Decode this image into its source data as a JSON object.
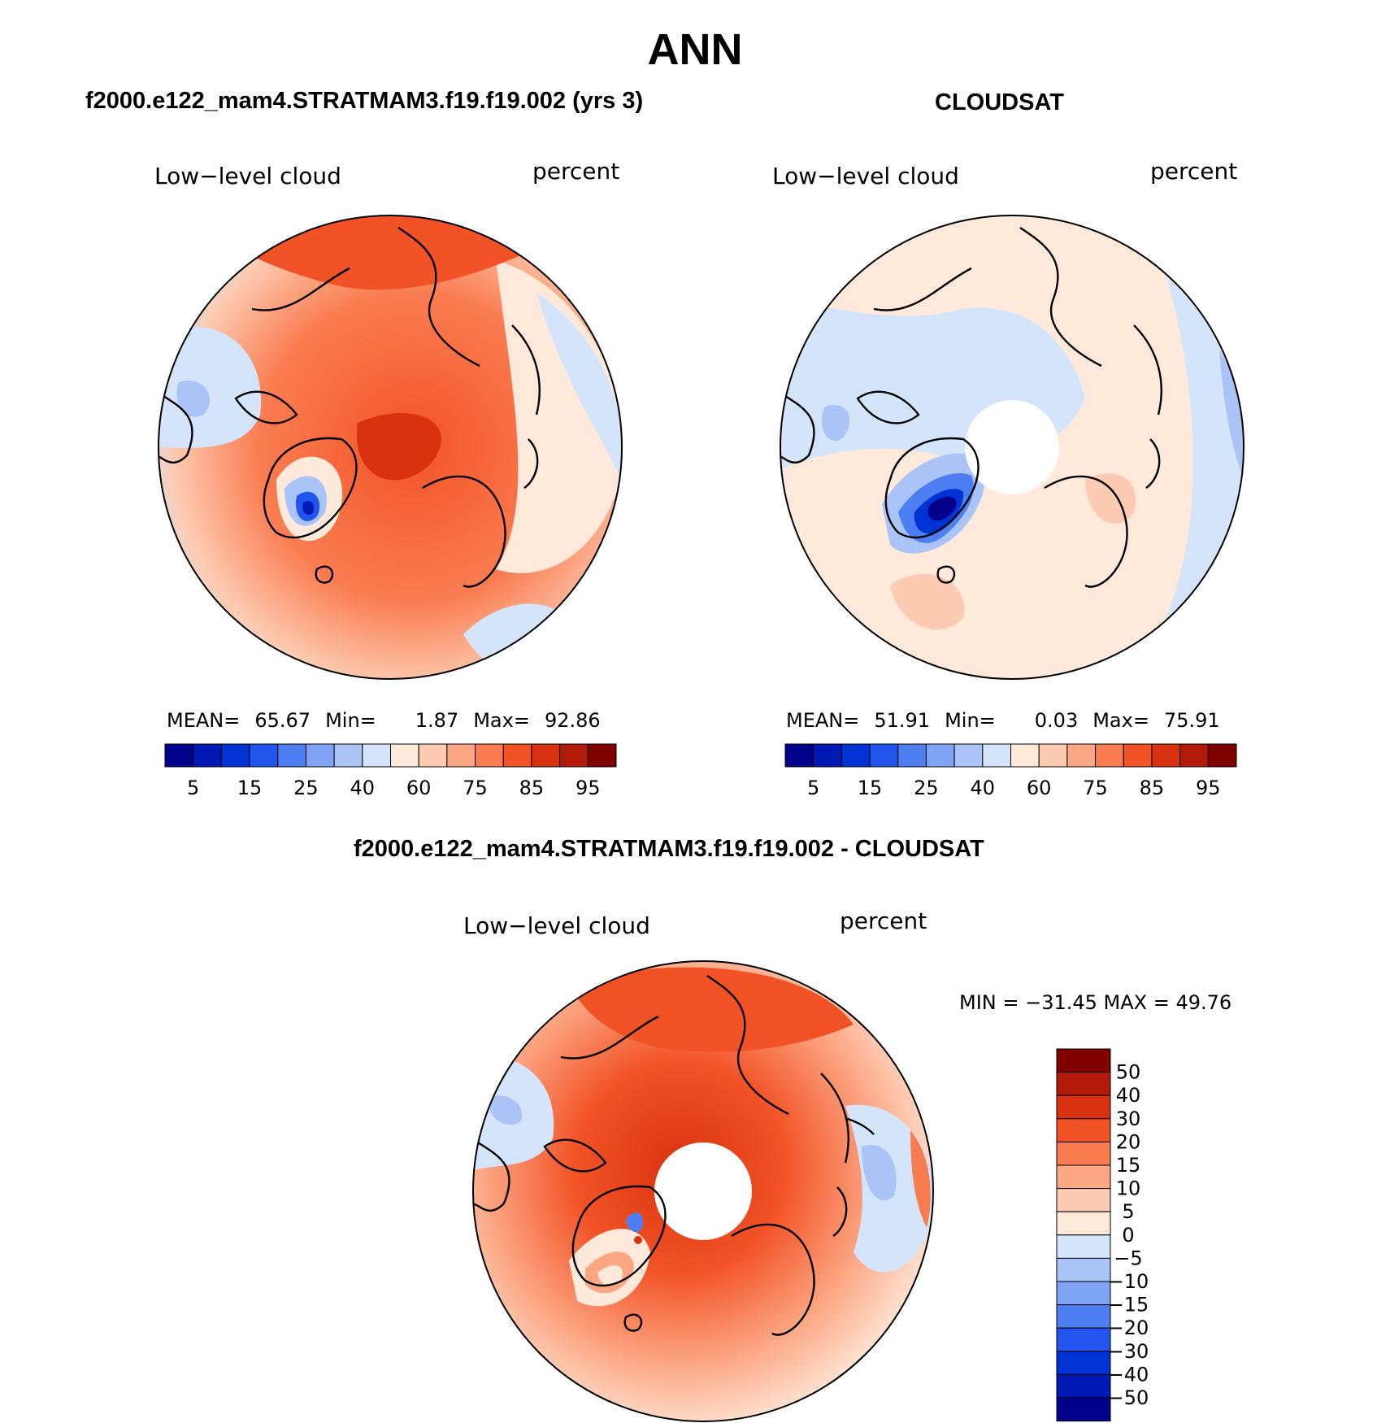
{
  "season": "ANN",
  "panels": [
    {
      "title": "f2000.e122_mam4.STRATMAM3.f19.f19.002 (yrs 3)",
      "variable": "Low−level cloud",
      "units": "percent",
      "mean_label": "MEAN=",
      "mean": "65.67",
      "min_label": "Min=",
      "min": "1.87",
      "max_label": "Max=",
      "max": "92.86",
      "has_polar_hole": false
    },
    {
      "title": "CLOUDSAT",
      "variable": "Low−level cloud",
      "units": "percent",
      "mean_label": "MEAN=",
      "mean": "51.91",
      "min_label": "Min=",
      "min": "0.03",
      "max_label": "Max=",
      "max": "75.91",
      "has_polar_hole": true
    }
  ],
  "diff_panel": {
    "title": "f2000.e122_mam4.STRATMAM3.f19.f19.002 - CLOUDSAT",
    "variable": "Low−level cloud",
    "units": "percent",
    "minmax_text": "MIN = −31.45 MAX =   49.76",
    "has_polar_hole": true
  },
  "colorbar_abs": {
    "tick_labels": [
      "5",
      "15",
      "25",
      "40",
      "60",
      "75",
      "85",
      "95"
    ],
    "colors": [
      "#00008b",
      "#0018b4",
      "#0033d6",
      "#2255ee",
      "#4d7ef2",
      "#7fa3f5",
      "#aac4f8",
      "#d4e5fb",
      "#fee9da",
      "#fdcbb1",
      "#fca683",
      "#fa7d52",
      "#f25326",
      "#d93210",
      "#b31a0a",
      "#800000"
    ]
  },
  "colorbar_diff": {
    "tick_labels": [
      "50",
      "40",
      "30",
      "20",
      "15",
      "10",
      "5",
      "0",
      "−5",
      "−10",
      "−15",
      "−20",
      "−30",
      "−40",
      "−50"
    ],
    "colors": [
      "#800000",
      "#b31a0a",
      "#d93210",
      "#f25326",
      "#fa7d52",
      "#fca683",
      "#fdcbb1",
      "#fee9da",
      "#d4e5fb",
      "#aac4f8",
      "#7fa3f5",
      "#4d7ef2",
      "#2255ee",
      "#0033d6",
      "#0018b4",
      "#00008b"
    ]
  },
  "colors": {
    "land_outline": "#000000",
    "background": "#ffffff"
  }
}
